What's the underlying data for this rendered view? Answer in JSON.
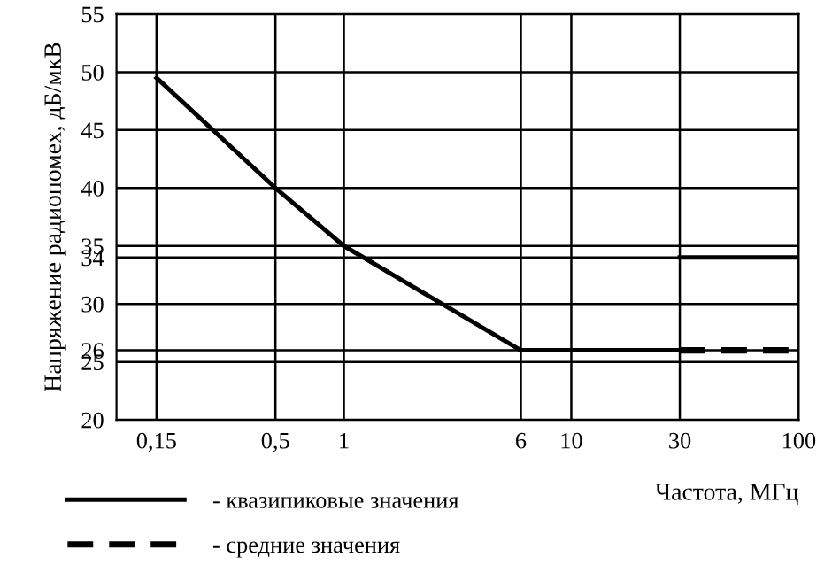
{
  "chart_data": {
    "type": "line",
    "xlabel": "Частота, МГц",
    "ylabel": "Напряжение радиопомех, дБ/мкВ",
    "series": [
      {
        "name": "- квазипиковые значения",
        "color": "#000000",
        "line_style": "solid",
        "x": [
          0.15,
          0.5,
          1,
          6,
          30
        ],
        "values": [
          49.5,
          40,
          35,
          26,
          26
        ]
      },
      {
        "color": "#000000",
        "line_style": "solid",
        "x": [
          30,
          100
        ],
        "values": [
          34,
          34
        ]
      },
      {
        "name": "- средние значения",
        "color": "#000000",
        "line_style": "dashed",
        "x": [
          30,
          100
        ],
        "values": [
          26,
          26
        ]
      }
    ],
    "log": "x",
    "xlim": [
      0.1,
      100
    ],
    "xticks": [
      {
        "value": 0.15,
        "label": "0,15"
      },
      {
        "value": 0.5,
        "label": "0,5"
      },
      1,
      6,
      10,
      30,
      100
    ],
    "ylim": [
      20,
      55
    ],
    "yticks": [
      20,
      25,
      26,
      30,
      34,
      35,
      40,
      45,
      50,
      55
    ],
    "grid": true,
    "marker": "none",
    "legend": "bottom left"
  }
}
